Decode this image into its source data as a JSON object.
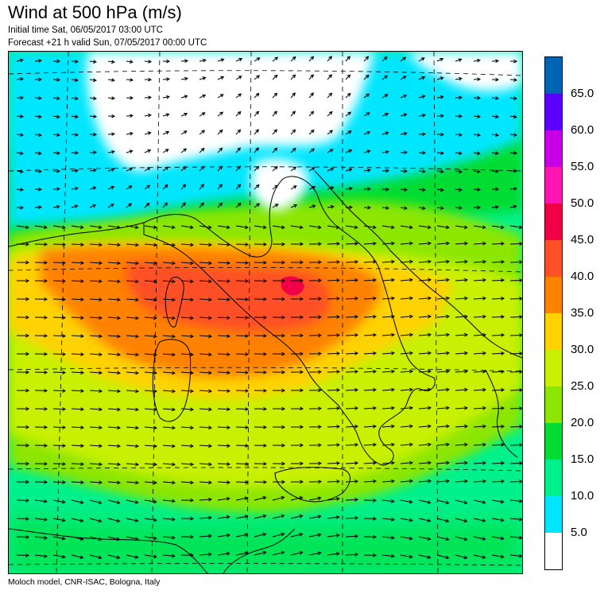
{
  "header": {
    "title": "Wind at 500 hPa (m/s)",
    "initial_time": "Initial time  Sat, 06/05/2017 03:00 UTC",
    "forecast": "Forecast +21 h valid  Sun, 07/05/2017 00:00 UTC"
  },
  "footer": {
    "credit": "Moloch model, CNR-ISAC, Bologna, Italy"
  },
  "map": {
    "region": "Italy and central Mediterranean",
    "wind_direction": "westerly",
    "jet_max_speed_range": "45.0-50.0",
    "colors": {
      "coastline": "#000000",
      "graticule": "#000000",
      "arrows": "#000000"
    }
  },
  "colorbar": {
    "bins": [
      {
        "label": "",
        "color": "#ffffff"
      },
      {
        "label": "5.0",
        "color": "#00e6ff"
      },
      {
        "label": "10.0",
        "color": "#00f08c"
      },
      {
        "label": "15.0",
        "color": "#00dc32"
      },
      {
        "label": "20.0",
        "color": "#8ce600"
      },
      {
        "label": "25.0",
        "color": "#c8f000"
      },
      {
        "label": "30.0",
        "color": "#ffd200"
      },
      {
        "label": "35.0",
        "color": "#ff8200"
      },
      {
        "label": "40.0",
        "color": "#ff5028"
      },
      {
        "label": "45.0",
        "color": "#f00046"
      },
      {
        "label": "50.0",
        "color": "#ff14b4"
      },
      {
        "label": "55.0",
        "color": "#c800e6"
      },
      {
        "label": "60.0",
        "color": "#5a00ff"
      },
      {
        "label": "65.0",
        "color": "#0064b4"
      }
    ]
  }
}
